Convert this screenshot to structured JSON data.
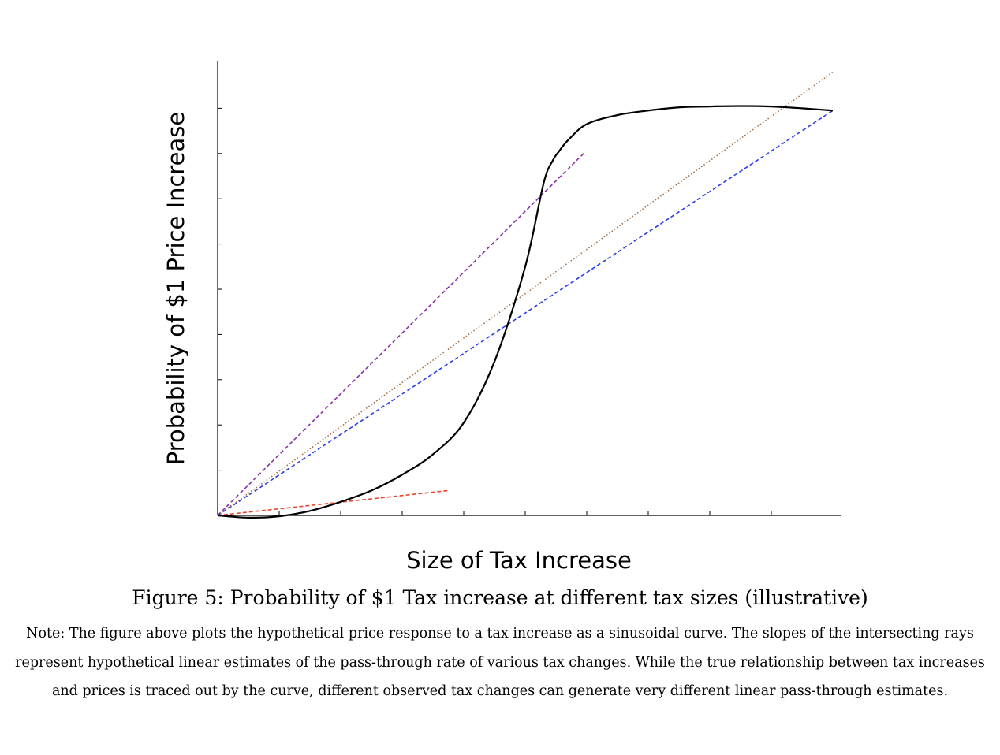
{
  "chart_data": {
    "type": "line",
    "title": "",
    "xlabel": "Size of Tax Increase",
    "ylabel": "Probability of $1 Price Increase",
    "xlim": [
      0,
      10
    ],
    "ylim": [
      0,
      10
    ],
    "x_ticks": [
      1,
      2,
      3,
      4,
      5,
      6,
      7,
      8,
      9
    ],
    "y_ticks": [
      1,
      2,
      3,
      4,
      5,
      6,
      7,
      8,
      9
    ],
    "tick_labels_shown": false,
    "grid": false,
    "legend": "none",
    "curve": {
      "style": "solid",
      "color": "#000000",
      "x": [
        0,
        0.5,
        1,
        1.5,
        2,
        2.5,
        3,
        3.5,
        4,
        4.5,
        5,
        5.3,
        5.45,
        5.55,
        5.7,
        6,
        6.5,
        7,
        7.5,
        8,
        8.5,
        9,
        9.5,
        10
      ],
      "y": [
        0,
        -0.05,
        -0.02,
        0.1,
        0.3,
        0.55,
        0.9,
        1.35,
        2.05,
        3.4,
        5.5,
        7.35,
        7.85,
        8.05,
        8.3,
        8.65,
        8.85,
        8.95,
        9.02,
        9.04,
        9.05,
        9.04,
        9.0,
        8.95
      ]
    },
    "rays": [
      {
        "color": "#e8442c",
        "style": "dashed",
        "x": [
          0,
          3.75
        ],
        "y": [
          0,
          0.55
        ]
      },
      {
        "color": "#8b2fa8",
        "style": "dashed",
        "x": [
          0,
          5.95
        ],
        "y": [
          0,
          8.0
        ]
      },
      {
        "color": "#2b3ee8",
        "style": "dashed",
        "x": [
          0,
          10
        ],
        "y": [
          0,
          8.95
        ]
      },
      {
        "color": "#a0704a",
        "style": "dotted",
        "x": [
          0,
          10
        ],
        "y": [
          0,
          9.8
        ]
      }
    ]
  },
  "figure": {
    "caption": "Figure 5: Probability of $1 Tax increase at different tax sizes (illustrative)",
    "note": "Note: The figure above plots the hypothetical price response to a tax increase as a sinusoidal curve. The slopes of the intersecting rays represent hypothetical linear estimates of the pass-through rate of various tax changes. While the true relationship between tax increases and prices is traced out by the curve, different observed tax changes can generate very different linear pass-through estimates."
  }
}
